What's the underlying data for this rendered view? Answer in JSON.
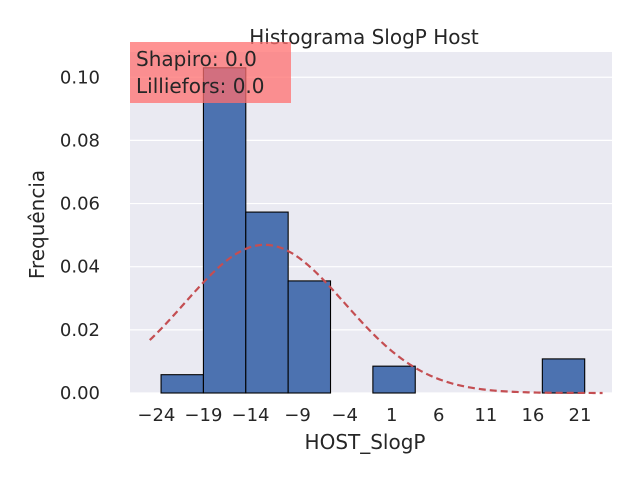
{
  "chart_data": {
    "type": "bar",
    "title": "Histograma SlogP Host",
    "xlabel": "HOST_SlogP",
    "ylabel": "Frequência",
    "xlim": [
      -26.8,
      24.4
    ],
    "ylim": [
      0,
      0.108
    ],
    "xticks": [
      -24,
      -19,
      -14,
      -9,
      -4,
      1,
      6,
      11,
      16,
      21
    ],
    "xtick_labels": [
      "−24",
      "−19",
      "−14",
      "−9",
      "−4",
      "1",
      "6",
      "11",
      "16",
      "21"
    ],
    "yticks": [
      0.0,
      0.02,
      0.04,
      0.06,
      0.08,
      0.1
    ],
    "ytick_labels": [
      "0.00",
      "0.02",
      "0.04",
      "0.06",
      "0.08",
      "0.10"
    ],
    "grid": true,
    "bins": [
      {
        "x0": -23.5,
        "x1": -19.0,
        "value": 0.0058
      },
      {
        "x0": -19.0,
        "x1": -14.5,
        "value": 0.103
      },
      {
        "x0": -14.5,
        "x1": -10.0,
        "value": 0.0573
      },
      {
        "x0": -10.0,
        "x1": -5.5,
        "value": 0.0355
      },
      {
        "x0": -5.5,
        "x1": -1.0,
        "value": 0.0
      },
      {
        "x0": -1.0,
        "x1": 3.5,
        "value": 0.0085
      },
      {
        "x0": 3.5,
        "x1": 8.0,
        "value": 0.0
      },
      {
        "x0": 8.0,
        "x1": 12.5,
        "value": 0.0
      },
      {
        "x0": 12.5,
        "x1": 17.0,
        "value": 0.0
      },
      {
        "x0": 17.0,
        "x1": 21.5,
        "value": 0.0108
      }
    ],
    "normal_curve": {
      "mean": -12.5,
      "std": 8.5,
      "x_range": [
        -24.7,
        23.4
      ]
    },
    "annotation": {
      "lines": [
        "Shapiro: 0.0",
        "Lilliefors: 0.0"
      ],
      "placement": "top-left"
    },
    "colors": {
      "bar": "#4c72b0",
      "bar_edge": "#000000",
      "curve": "#c44e52",
      "background": "#eaeaf2",
      "grid": "#ffffff",
      "annotation_box": "#ff6f6f"
    }
  }
}
